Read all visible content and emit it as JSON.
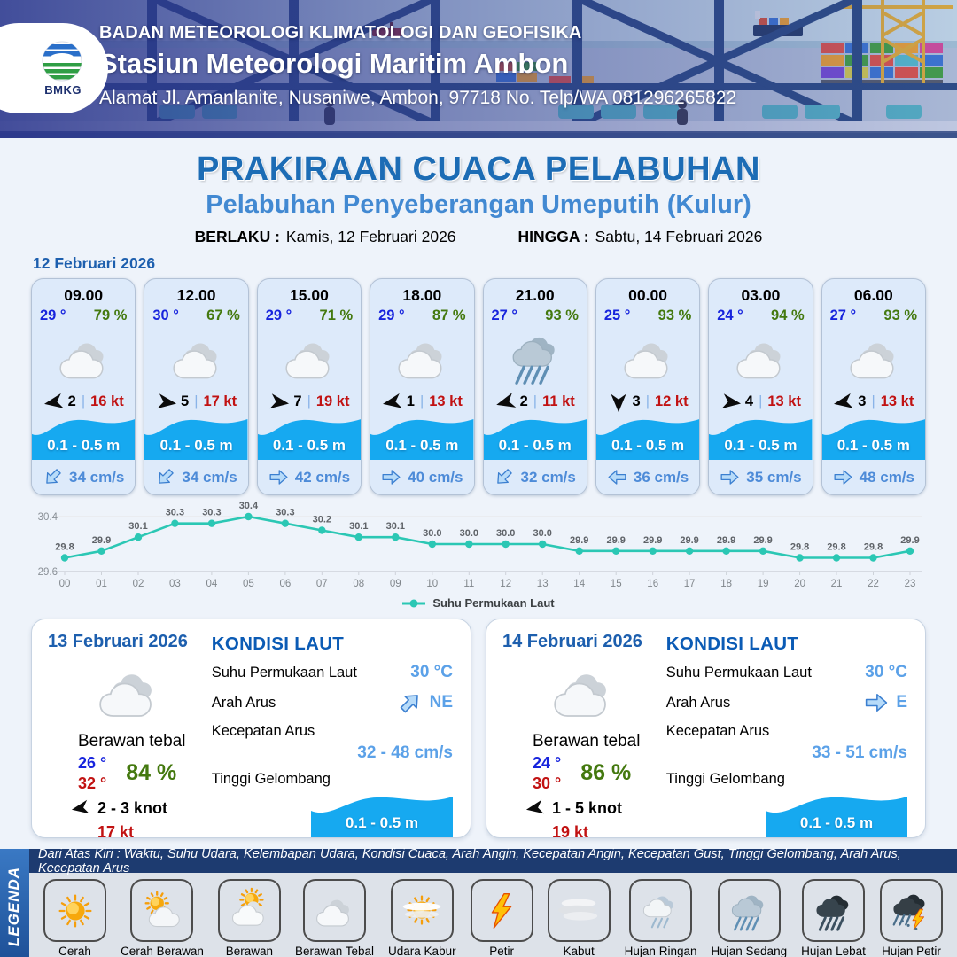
{
  "header": {
    "logo_text": "BMKG",
    "agency": "BADAN METEOROLOGI KLIMATOLOGI DAN GEOFISIKA",
    "station": "Stasiun Meteorologi Maritim Ambon",
    "address": "Alamat Jl. Amanlanite, Nusaniwe, Ambon, 97718   No. Telp/WA  081296265822"
  },
  "title": {
    "main": "PRAKIRAAN CUACA PELABUHAN",
    "sub": "Pelabuhan Penyeberangan Umeputih (Kulur)"
  },
  "validity": {
    "berlaku_label": "BERLAKU :",
    "berlaku_value": "Kamis, 12 Februari 2026",
    "hingga_label": "HINGGA :",
    "hingga_value": "Sabtu, 14 Februari 2026"
  },
  "hourly": {
    "date": "12 Februari 2026",
    "cards": [
      {
        "time": "09.00",
        "temp": "29 °",
        "humidity": "79 %",
        "icon": "berawan-tebal",
        "wind_deg": 170,
        "wind_speed": "2",
        "gust": "16 kt",
        "wave": "0.1 - 0.5 m",
        "current_deg": 135,
        "current": "34 cm/s"
      },
      {
        "time": "12.00",
        "temp": "30 °",
        "humidity": "67 %",
        "icon": "berawan-tebal",
        "wind_deg": 8,
        "wind_speed": "5",
        "gust": "17 kt",
        "wave": "0.1 - 0.5 m",
        "current_deg": 135,
        "current": "34 cm/s"
      },
      {
        "time": "15.00",
        "temp": "29 °",
        "humidity": "71 %",
        "icon": "berawan-tebal",
        "wind_deg": 8,
        "wind_speed": "7",
        "gust": "19 kt",
        "wave": "0.1 - 0.5 m",
        "current_deg": 0,
        "current": "42 cm/s"
      },
      {
        "time": "18.00",
        "temp": "29 °",
        "humidity": "87 %",
        "icon": "berawan-tebal",
        "wind_deg": 170,
        "wind_speed": "1",
        "gust": "13 kt",
        "wave": "0.1 - 0.5 m",
        "current_deg": 0,
        "current": "40 cm/s"
      },
      {
        "time": "21.00",
        "temp": "27 °",
        "humidity": "93 %",
        "icon": "hujan-sedang",
        "wind_deg": 165,
        "wind_speed": "2",
        "gust": "11 kt",
        "wave": "0.1 - 0.5 m",
        "current_deg": 135,
        "current": "32 cm/s"
      },
      {
        "time": "00.00",
        "temp": "25 °",
        "humidity": "93 %",
        "icon": "berawan-tebal",
        "wind_deg": 90,
        "wind_speed": "3",
        "gust": "12 kt",
        "wave": "0.1 - 0.5 m",
        "current_deg": 180,
        "current": "36 cm/s"
      },
      {
        "time": "03.00",
        "temp": "24 °",
        "humidity": "94 %",
        "icon": "berawan-tebal",
        "wind_deg": 8,
        "wind_speed": "4",
        "gust": "13 kt",
        "wave": "0.1 - 0.5 m",
        "current_deg": 0,
        "current": "35 cm/s"
      },
      {
        "time": "06.00",
        "temp": "27 °",
        "humidity": "93 %",
        "icon": "berawan-tebal",
        "wind_deg": 170,
        "wind_speed": "3",
        "gust": "13 kt",
        "wave": "0.1 - 0.5 m",
        "current_deg": 0,
        "current": "48 cm/s"
      }
    ]
  },
  "chart_data": {
    "type": "line",
    "x": [
      "00",
      "01",
      "02",
      "03",
      "04",
      "05",
      "06",
      "07",
      "08",
      "09",
      "10",
      "11",
      "12",
      "13",
      "14",
      "15",
      "16",
      "17",
      "18",
      "19",
      "20",
      "21",
      "22",
      "23"
    ],
    "series": [
      {
        "name": "Suhu Permukaan Laut",
        "values": [
          29.8,
          29.9,
          30.1,
          30.3,
          30.3,
          30.4,
          30.3,
          30.2,
          30.1,
          30.1,
          30.0,
          30.0,
          30.0,
          30.0,
          29.9,
          29.9,
          29.9,
          29.9,
          29.9,
          29.9,
          29.8,
          29.8,
          29.8,
          29.9
        ]
      }
    ],
    "ylim": [
      29.6,
      30.4
    ],
    "yticks": [
      29.6,
      30.4
    ],
    "line_color": "#2BC7B4",
    "grid": "horizontal-top-only",
    "point_labels": true,
    "legend_position": "bottom"
  },
  "daily": {
    "cards": [
      {
        "date": "13 Februari 2026",
        "icon": "berawan-tebal",
        "desc": "Berawan tebal",
        "temp_min": "26 °",
        "temp_max": "32 °",
        "humidity": "84 %",
        "wind_deg": 170,
        "wind_range": "2  - 3 knot",
        "gust": "17 kt",
        "sea": {
          "title": "KONDISI LAUT",
          "sst_label": "Suhu Permukaan Laut",
          "sst": "30 °C",
          "dir_label": "Arah Arus",
          "dir": "NE",
          "dir_deg": -45,
          "speed_label": "Kecepatan Arus",
          "speed": "32 - 48 cm/s",
          "wave_label": "Tinggi Gelombang",
          "wave": "0.1 - 0.5 m"
        }
      },
      {
        "date": "14 Februari 2026",
        "icon": "berawan-tebal",
        "desc": "Berawan tebal",
        "temp_min": "24 °",
        "temp_max": "30 °",
        "humidity": "86 %",
        "wind_deg": 170,
        "wind_range": "1  - 5 knot",
        "gust": "19 kt",
        "sea": {
          "title": "KONDISI LAUT",
          "sst_label": "Suhu Permukaan Laut",
          "sst": "30 °C",
          "dir_label": "Arah Arus",
          "dir": "E",
          "dir_deg": 0,
          "speed_label": "Kecepatan Arus",
          "speed": "33 - 51 cm/s",
          "wave_label": "Tinggi Gelombang",
          "wave": "0.1 - 0.5 m"
        }
      }
    ]
  },
  "legend": {
    "side_label": "LEGENDA",
    "caption": "Dari Atas Kiri : Waktu, Suhu Udara, Kelembapan Udara, Kondisi Cuaca, Arah Angin, Kecepatan Angin, Kecepatan Gust, Tinggi Gelombang, Arah Arus, Kecepatan Arus",
    "items": [
      {
        "label": "Cerah",
        "icon": "cerah"
      },
      {
        "label": "Cerah Berawan",
        "icon": "cerah-berawan"
      },
      {
        "label": "Berawan",
        "icon": "berawan"
      },
      {
        "label": "Berawan Tebal",
        "icon": "berawan-tebal"
      },
      {
        "label": "Udara Kabur",
        "icon": "udara-kabur"
      },
      {
        "label": "Petir",
        "icon": "petir"
      },
      {
        "label": "Kabut",
        "icon": "kabut"
      },
      {
        "label": "Hujan Ringan",
        "icon": "hujan-ringan"
      },
      {
        "label": "Hujan Sedang",
        "icon": "hujan-sedang"
      },
      {
        "label": "Hujan Lebat",
        "icon": "hujan-lebat"
      },
      {
        "label": "Hujan Petir",
        "icon": "hujan-petir"
      }
    ]
  },
  "colors": {
    "title_blue": "#1C6CB5",
    "subtitle_blue": "#4289D2",
    "date_blue": "#1D5FAE",
    "temp_blue": "#1724DD",
    "humidity_green": "#44790F",
    "gust_red": "#C11212",
    "wave_blue": "#16A9F0",
    "current_blue": "#4D8BD8",
    "value_lightblue": "#5BA1E8",
    "kondisi_blue": "#0B5BB5",
    "line_teal": "#2BC7B4",
    "legend_navy": "#1D3B70"
  }
}
